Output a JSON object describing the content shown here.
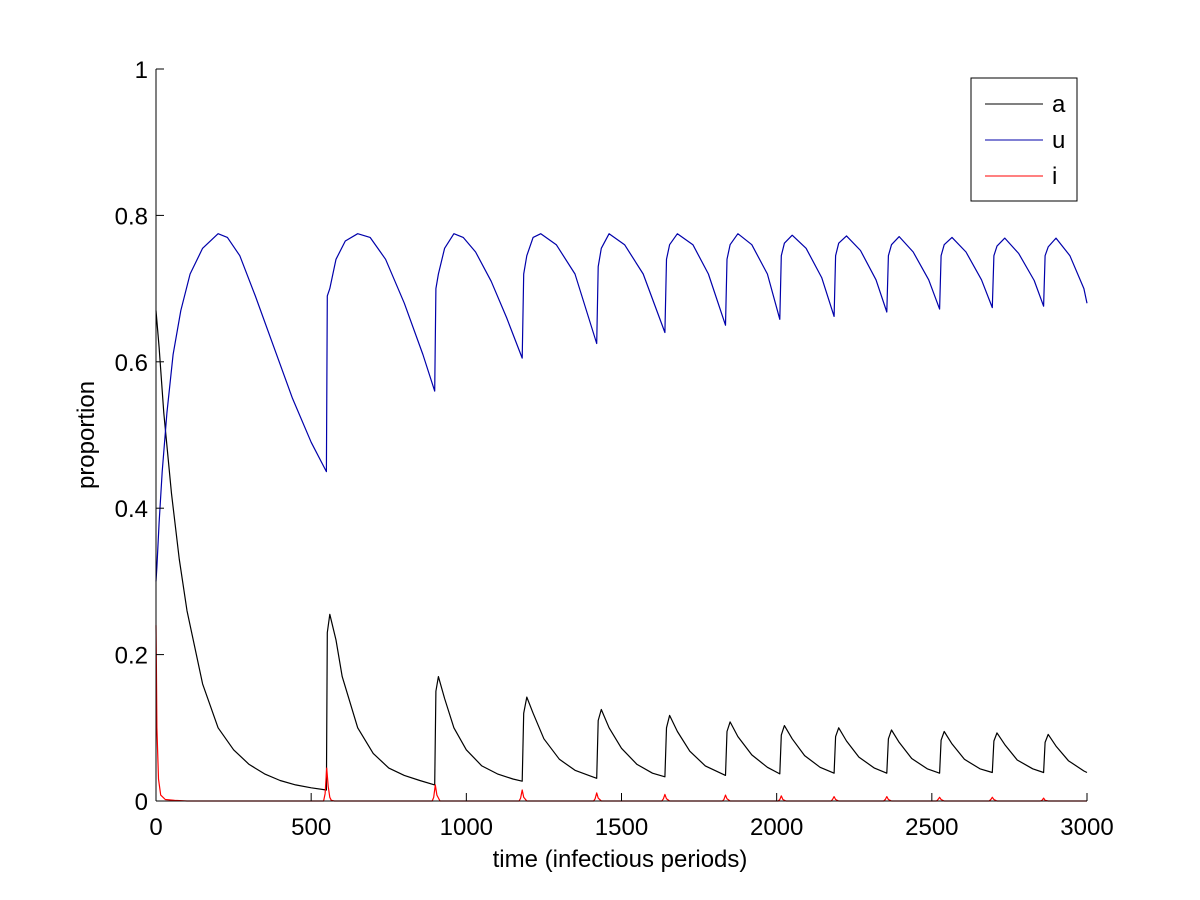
{
  "chart_data": {
    "type": "line",
    "title": "",
    "xlabel": "time (infectious periods)",
    "ylabel": "proportion",
    "xlim": [
      0,
      3000
    ],
    "ylim": [
      0,
      1
    ],
    "xticks": [
      0,
      500,
      1000,
      1500,
      2000,
      2500,
      3000
    ],
    "yticks": [
      0,
      0.2,
      0.4,
      0.6,
      0.8,
      1
    ],
    "xtick_labels": [
      "0",
      "500",
      "1000",
      "1500",
      "2000",
      "2500",
      "3000"
    ],
    "ytick_labels": [
      "0",
      "0.2",
      "0.4",
      "0.6",
      "0.8",
      "1"
    ],
    "grid": false,
    "legend_position": "top-right",
    "series": [
      {
        "name": "a",
        "color": "#000000",
        "x": [
          0,
          1,
          10,
          25,
          50,
          75,
          100,
          150,
          200,
          250,
          300,
          350,
          400,
          450,
          500,
          549,
          552,
          560,
          580,
          600,
          650,
          700,
          750,
          800,
          850,
          898,
          902,
          910,
          930,
          960,
          1000,
          1050,
          1100,
          1150,
          1180,
          1185,
          1195,
          1215,
          1250,
          1300,
          1350,
          1400,
          1420,
          1425,
          1435,
          1460,
          1500,
          1550,
          1600,
          1640,
          1645,
          1655,
          1680,
          1720,
          1770,
          1835,
          1840,
          1850,
          1875,
          1920,
          1970,
          2010,
          2015,
          2025,
          2050,
          2090,
          2140,
          2185,
          2190,
          2200,
          2225,
          2265,
          2315,
          2355,
          2360,
          2370,
          2395,
          2435,
          2485,
          2525,
          2530,
          2540,
          2565,
          2605,
          2655,
          2695,
          2700,
          2710,
          2735,
          2775,
          2825,
          2860,
          2865,
          2875,
          2900,
          2940,
          2990,
          3000
        ],
        "y": [
          0.67,
          0.665,
          0.62,
          0.53,
          0.42,
          0.33,
          0.26,
          0.16,
          0.1,
          0.07,
          0.05,
          0.037,
          0.028,
          0.022,
          0.018,
          0.015,
          0.23,
          0.255,
          0.22,
          0.17,
          0.1,
          0.065,
          0.045,
          0.035,
          0.028,
          0.022,
          0.15,
          0.17,
          0.14,
          0.1,
          0.07,
          0.048,
          0.037,
          0.03,
          0.027,
          0.12,
          0.142,
          0.12,
          0.085,
          0.057,
          0.042,
          0.034,
          0.031,
          0.11,
          0.125,
          0.1,
          0.072,
          0.05,
          0.038,
          0.033,
          0.1,
          0.117,
          0.095,
          0.068,
          0.048,
          0.035,
          0.095,
          0.108,
          0.088,
          0.063,
          0.046,
          0.037,
          0.09,
          0.103,
          0.085,
          0.062,
          0.046,
          0.038,
          0.088,
          0.1,
          0.082,
          0.06,
          0.045,
          0.038,
          0.085,
          0.097,
          0.08,
          0.058,
          0.044,
          0.038,
          0.083,
          0.095,
          0.078,
          0.057,
          0.044,
          0.039,
          0.082,
          0.093,
          0.077,
          0.056,
          0.044,
          0.039,
          0.08,
          0.091,
          0.075,
          0.055,
          0.041,
          0.039
        ]
      },
      {
        "name": "u",
        "color": "#0000aa",
        "x": [
          0,
          3,
          10,
          20,
          35,
          55,
          80,
          110,
          150,
          200,
          230,
          270,
          320,
          380,
          440,
          500,
          549,
          552,
          560,
          580,
          610,
          650,
          690,
          740,
          800,
          860,
          898,
          902,
          910,
          930,
          960,
          990,
          1030,
          1080,
          1130,
          1180,
          1185,
          1195,
          1215,
          1240,
          1290,
          1350,
          1420,
          1425,
          1435,
          1460,
          1510,
          1570,
          1640,
          1645,
          1655,
          1680,
          1730,
          1780,
          1835,
          1840,
          1850,
          1875,
          1920,
          1970,
          2010,
          2015,
          2025,
          2050,
          2095,
          2145,
          2185,
          2190,
          2200,
          2225,
          2270,
          2320,
          2355,
          2360,
          2370,
          2395,
          2440,
          2490,
          2525,
          2530,
          2540,
          2565,
          2610,
          2660,
          2695,
          2700,
          2710,
          2735,
          2780,
          2830,
          2860,
          2865,
          2875,
          2900,
          2945,
          2990,
          3000
        ],
        "y": [
          0.3,
          0.32,
          0.38,
          0.45,
          0.53,
          0.61,
          0.67,
          0.72,
          0.755,
          0.775,
          0.77,
          0.745,
          0.69,
          0.62,
          0.55,
          0.49,
          0.45,
          0.69,
          0.7,
          0.74,
          0.765,
          0.775,
          0.77,
          0.74,
          0.68,
          0.61,
          0.56,
          0.7,
          0.72,
          0.755,
          0.775,
          0.77,
          0.75,
          0.71,
          0.66,
          0.605,
          0.72,
          0.745,
          0.77,
          0.775,
          0.76,
          0.72,
          0.625,
          0.73,
          0.755,
          0.775,
          0.76,
          0.72,
          0.64,
          0.74,
          0.76,
          0.775,
          0.76,
          0.72,
          0.65,
          0.74,
          0.76,
          0.775,
          0.76,
          0.72,
          0.658,
          0.745,
          0.762,
          0.773,
          0.755,
          0.715,
          0.662,
          0.745,
          0.762,
          0.772,
          0.752,
          0.712,
          0.668,
          0.745,
          0.76,
          0.771,
          0.75,
          0.712,
          0.672,
          0.745,
          0.76,
          0.77,
          0.75,
          0.712,
          0.674,
          0.745,
          0.758,
          0.769,
          0.748,
          0.711,
          0.676,
          0.745,
          0.757,
          0.769,
          0.745,
          0.7,
          0.68
        ]
      },
      {
        "name": "i",
        "color": "#ff0000",
        "x": [
          0,
          1,
          3,
          8,
          15,
          30,
          60,
          100,
          540,
          545,
          550,
          555,
          560,
          565,
          575,
          890,
          895,
          900,
          905,
          915,
          1170,
          1175,
          1180,
          1185,
          1195,
          1410,
          1415,
          1420,
          1425,
          1435,
          1630,
          1635,
          1640,
          1645,
          1655,
          1825,
          1830,
          1835,
          1840,
          1850,
          2005,
          2010,
          2015,
          2020,
          2030,
          2175,
          2180,
          2185,
          2190,
          2200,
          2345,
          2350,
          2355,
          2360,
          2370,
          2515,
          2520,
          2525,
          2530,
          2540,
          2685,
          2690,
          2695,
          2700,
          2710,
          2850,
          2855,
          2860,
          2865,
          2875,
          3000
        ],
        "y": [
          0.24,
          0.2,
          0.1,
          0.03,
          0.008,
          0.002,
          0.001,
          0.0,
          0.0,
          0.01,
          0.045,
          0.02,
          0.005,
          0.001,
          0.0,
          0.0,
          0.005,
          0.022,
          0.008,
          0.0,
          0.0,
          0.004,
          0.015,
          0.005,
          0.0,
          0.0,
          0.003,
          0.011,
          0.004,
          0.0,
          0.0,
          0.003,
          0.009,
          0.003,
          0.0,
          0.0,
          0.002,
          0.008,
          0.003,
          0.0,
          0.0,
          0.002,
          0.007,
          0.002,
          0.0,
          0.0,
          0.002,
          0.006,
          0.002,
          0.0,
          0.0,
          0.002,
          0.006,
          0.002,
          0.0,
          0.0,
          0.002,
          0.005,
          0.002,
          0.0,
          0.0,
          0.002,
          0.005,
          0.002,
          0.0,
          0.0,
          0.001,
          0.004,
          0.001,
          0.0,
          0.0
        ]
      }
    ]
  }
}
